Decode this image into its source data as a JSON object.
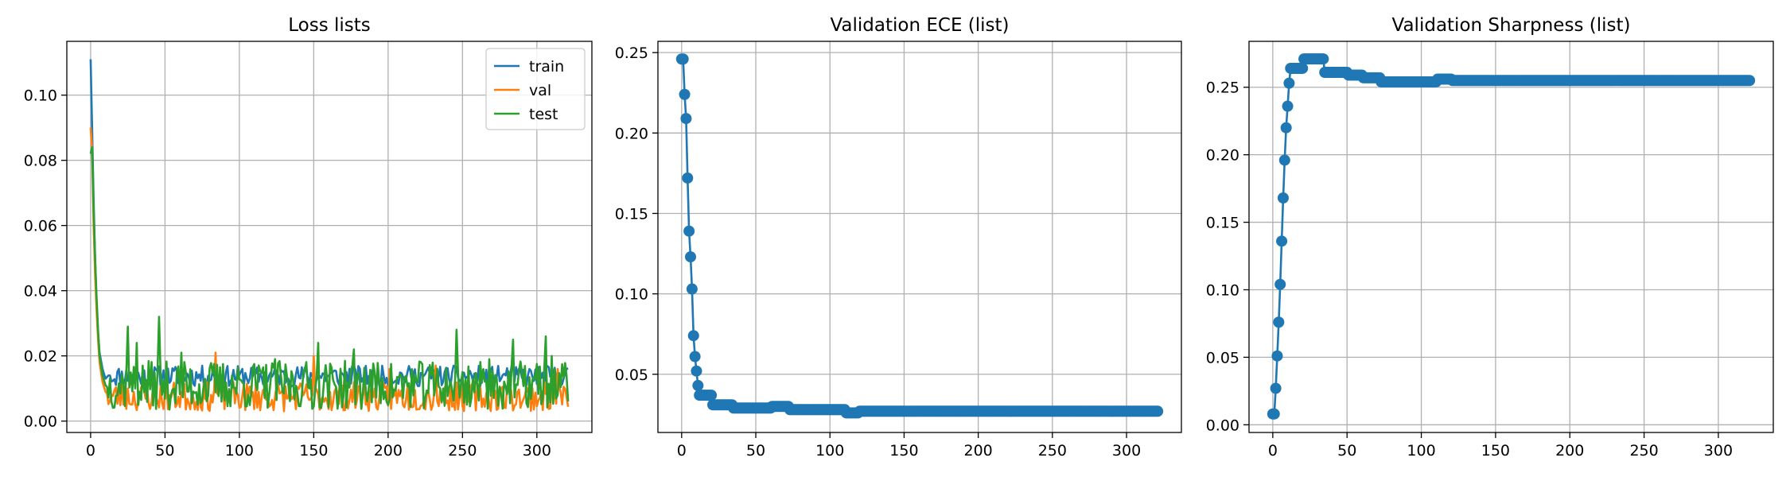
{
  "chart_data": [
    {
      "type": "line",
      "title": "Loss lists",
      "xlabel": "",
      "ylabel": "",
      "xlim": [
        -16,
        337
      ],
      "ylim": [
        -0.0035,
        0.1165
      ],
      "xticks": [
        0,
        50,
        100,
        150,
        200,
        250,
        300
      ],
      "xtick_labels": [
        "0",
        "50",
        "100",
        "150",
        "200",
        "250",
        "300"
      ],
      "yticks": [
        0.0,
        0.02,
        0.04,
        0.06,
        0.08,
        0.1
      ],
      "ytick_labels": [
        "0.00",
        "0.02",
        "0.04",
        "0.06",
        "0.08",
        "0.10"
      ],
      "grid": true,
      "legend": "top-right",
      "n_points": 322,
      "series": [
        {
          "name": "train",
          "color": "#1f77b4",
          "anchors": [
            [
              0,
              0.111
            ],
            [
              1,
              0.09
            ],
            [
              2,
              0.068
            ],
            [
              3,
              0.05
            ],
            [
              4,
              0.036
            ],
            [
              5,
              0.027
            ],
            [
              6,
              0.021
            ],
            [
              8,
              0.016
            ],
            [
              10,
              0.013
            ],
            [
              12,
              0.014
            ],
            [
              14,
              0.014
            ]
          ],
          "noise": {
            "start": 14,
            "base": 0.0138,
            "amp": 0.0032,
            "seed": 11
          }
        },
        {
          "name": "val",
          "color": "#ff7f0e",
          "anchors": [
            [
              0,
              0.09
            ],
            [
              1,
              0.084
            ],
            [
              2,
              0.06
            ],
            [
              3,
              0.045
            ],
            [
              4,
              0.034
            ],
            [
              5,
              0.025
            ],
            [
              6,
              0.018
            ],
            [
              8,
              0.012
            ],
            [
              10,
              0.009
            ],
            [
              12,
              0.008
            ]
          ],
          "noise": {
            "start": 12,
            "base": 0.0075,
            "amp": 0.0045,
            "seed": 23
          },
          "spikes": [
            [
              84,
              0.021
            ],
            [
              150,
              0.02
            ],
            [
              201,
              0.016
            ],
            [
              232,
              0.017
            ],
            [
              314,
              0.016
            ]
          ]
        },
        {
          "name": "test",
          "color": "#2ca02c",
          "anchors": [
            [
              0,
              0.082
            ],
            [
              1,
              0.084
            ],
            [
              2,
              0.065
            ],
            [
              3,
              0.05
            ],
            [
              4,
              0.038
            ],
            [
              5,
              0.028
            ],
            [
              6,
              0.02
            ],
            [
              8,
              0.014
            ],
            [
              10,
              0.011
            ],
            [
              12,
              0.01
            ]
          ],
          "noise": {
            "start": 12,
            "base": 0.011,
            "amp": 0.0075,
            "seed": 37
          },
          "spikes": [
            [
              25,
              0.029
            ],
            [
              31,
              0.024
            ],
            [
              46,
              0.032
            ],
            [
              61,
              0.021
            ],
            [
              124,
              0.019
            ],
            [
              153,
              0.024
            ],
            [
              177,
              0.022
            ],
            [
              246,
              0.028
            ],
            [
              268,
              0.019
            ],
            [
              284,
              0.025
            ],
            [
              306,
              0.026
            ],
            [
              310,
              0.02
            ]
          ]
        }
      ]
    },
    {
      "type": "line",
      "title": "Validation ECE (list)",
      "xlabel": "",
      "ylabel": "",
      "xlim": [
        -16,
        337
      ],
      "ylim": [
        0.0138,
        0.257
      ],
      "xticks": [
        0,
        50,
        100,
        150,
        200,
        250,
        300
      ],
      "xtick_labels": [
        "0",
        "50",
        "100",
        "150",
        "200",
        "250",
        "300"
      ],
      "yticks": [
        0.05,
        0.1,
        0.15,
        0.2,
        0.25
      ],
      "ytick_labels": [
        "0.05",
        "0.10",
        "0.15",
        "0.20",
        "0.25"
      ],
      "grid": true,
      "marker": "circle",
      "n_points": 322,
      "series": [
        {
          "name": "",
          "color": "#1f77b4",
          "anchors": [
            [
              0,
              0.246
            ],
            [
              1,
              0.246
            ],
            [
              2,
              0.224
            ],
            [
              3,
              0.209
            ],
            [
              4,
              0.172
            ],
            [
              5,
              0.139
            ],
            [
              6,
              0.123
            ],
            [
              7,
              0.103
            ],
            [
              8,
              0.074
            ],
            [
              9,
              0.061
            ],
            [
              10,
              0.052
            ],
            [
              11,
              0.043
            ],
            [
              12,
              0.037
            ],
            [
              20,
              0.037
            ],
            [
              21,
              0.031
            ],
            [
              34,
              0.031
            ],
            [
              35,
              0.029
            ],
            [
              60,
              0.029
            ],
            [
              61,
              0.03
            ],
            [
              72,
              0.03
            ],
            [
              73,
              0.028
            ],
            [
              110,
              0.028
            ],
            [
              111,
              0.026
            ],
            [
              119,
              0.026
            ],
            [
              120,
              0.027
            ],
            [
              321,
              0.027
            ]
          ]
        }
      ]
    },
    {
      "type": "line",
      "title": "Validation Sharpness (list)",
      "xlabel": "",
      "ylabel": "",
      "xlim": [
        -16,
        337
      ],
      "ylim": [
        -0.0057,
        0.284
      ],
      "xticks": [
        0,
        50,
        100,
        150,
        200,
        250,
        300
      ],
      "xtick_labels": [
        "0",
        "50",
        "100",
        "150",
        "200",
        "250",
        "300"
      ],
      "yticks": [
        0.0,
        0.05,
        0.1,
        0.15,
        0.2,
        0.25
      ],
      "ytick_labels": [
        "0.00",
        "0.05",
        "0.10",
        "0.15",
        "0.20",
        "0.25"
      ],
      "grid": true,
      "marker": "circle",
      "n_points": 322,
      "series": [
        {
          "name": "",
          "color": "#1f77b4",
          "anchors": [
            [
              0,
              0.008
            ],
            [
              1,
              0.008
            ],
            [
              2,
              0.027
            ],
            [
              3,
              0.051
            ],
            [
              4,
              0.076
            ],
            [
              5,
              0.104
            ],
            [
              6,
              0.136
            ],
            [
              7,
              0.168
            ],
            [
              8,
              0.196
            ],
            [
              9,
              0.22
            ],
            [
              10,
              0.236
            ],
            [
              11,
              0.253
            ],
            [
              12,
              0.264
            ],
            [
              20,
              0.264
            ],
            [
              21,
              0.271
            ],
            [
              34,
              0.271
            ],
            [
              35,
              0.261
            ],
            [
              50,
              0.261
            ],
            [
              51,
              0.259
            ],
            [
              60,
              0.259
            ],
            [
              61,
              0.257
            ],
            [
              72,
              0.257
            ],
            [
              73,
              0.254
            ],
            [
              110,
              0.254
            ],
            [
              111,
              0.256
            ],
            [
              120,
              0.256
            ],
            [
              121,
              0.255
            ],
            [
              321,
              0.255
            ]
          ]
        }
      ]
    }
  ]
}
